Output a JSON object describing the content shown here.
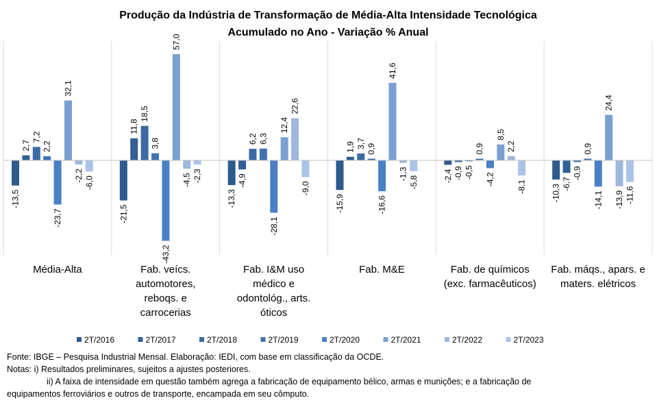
{
  "chart_data": {
    "type": "bar",
    "title": "Produção da Indústria de Transformação de Média-Alta Intensidade Tecnológica",
    "subtitle": "Acumulado no Ano - Variação % Anual",
    "categories": [
      [
        "Média-Alta"
      ],
      [
        "Fab. veícs.",
        "automotores,",
        "reboqs. e",
        "carrocerias"
      ],
      [
        "Fab. I&M uso",
        "médico e",
        "odontológ., arts.",
        "óticos"
      ],
      [
        "Fab. M&E"
      ],
      [
        "Fab. de químicos",
        "(exc. farmacêuticos)"
      ],
      [
        "Fab. máqs., apars. e",
        "maters. elétricos"
      ]
    ],
    "series": [
      {
        "name": "2T/2016",
        "color": "#2f5a8c",
        "values": [
          -13.5,
          -21.5,
          -13.3,
          -15.9,
          -2.4,
          -10.3
        ]
      },
      {
        "name": "2T/2017",
        "color": "#325f94",
        "values": [
          2.7,
          11.8,
          -4.9,
          1.9,
          -0.9,
          -6.7
        ]
      },
      {
        "name": "2T/2018",
        "color": "#3a6aa4",
        "values": [
          7.2,
          18.5,
          6.2,
          3.7,
          -0.5,
          -0.9
        ]
      },
      {
        "name": "2T/2019",
        "color": "#3f73b4",
        "values": [
          2.2,
          3.8,
          6.3,
          0.9,
          0.9,
          0.9
        ]
      },
      {
        "name": "2T/2020",
        "color": "#4a80c4",
        "values": [
          -23.7,
          -43.2,
          -28.1,
          -16.6,
          -4.2,
          -14.1
        ]
      },
      {
        "name": "2T/2021",
        "color": "#7b9fd0",
        "values": [
          32.1,
          57.0,
          12.4,
          41.6,
          8.5,
          24.4
        ]
      },
      {
        "name": "2T/2022",
        "color": "#9db7dd",
        "values": [
          -2.2,
          -4.5,
          22.6,
          -1.3,
          2.2,
          -13.9
        ]
      },
      {
        "name": "2T/2023",
        "color": "#abc3e6",
        "values": [
          -6.0,
          -2.3,
          -9.0,
          -5.8,
          -8.1,
          -11.6
        ]
      }
    ],
    "value_labels": [
      [
        "-13,5",
        "-21,5",
        "-13,3",
        "-15,9",
        "-2,4",
        "-10,3"
      ],
      [
        "2,7",
        "11,8",
        "-4,9",
        "1,9",
        "-0,9",
        "-6,7"
      ],
      [
        "7,2",
        "18,5",
        "6,2",
        "3,7",
        "-0,5",
        "-0,9"
      ],
      [
        "2,2",
        "3,8",
        "6,3",
        "0,9",
        "0,9",
        "0,9"
      ],
      [
        "-23,7",
        "-43,2",
        "-28,1",
        "-16,6",
        "-4,2",
        "-14,1"
      ],
      [
        "32,1",
        "57,0",
        "12,4",
        "41,6",
        "8,5",
        "24,4"
      ],
      [
        "-2,2",
        "-4,5",
        "22,6",
        "-1,3",
        "2,2",
        "-13,9"
      ],
      [
        "-6,0",
        "-2,3",
        "-9,0",
        "-5,8",
        "-8,1",
        "-11,6"
      ]
    ],
    "ylim": [
      -48,
      62
    ],
    "grid": false,
    "legend_position": "bottom"
  },
  "notes": {
    "source": "Fonte: IBGE – Pesquisa Industrial Mensal. Elaboração: IEDI, com base em classificação da OCDE.",
    "note_i": "Notas: i) Resultados preliminares, sujeitos a ajustes posteriores.",
    "note_ii_a": "ii) A faixa de intensidade em questão também agrega a fabricação de equipamento bélico, armas e munições; e a fabricação de",
    "note_ii_b": "equipamentos ferroviários e outros de transporte, encampada em seu cômputo."
  }
}
